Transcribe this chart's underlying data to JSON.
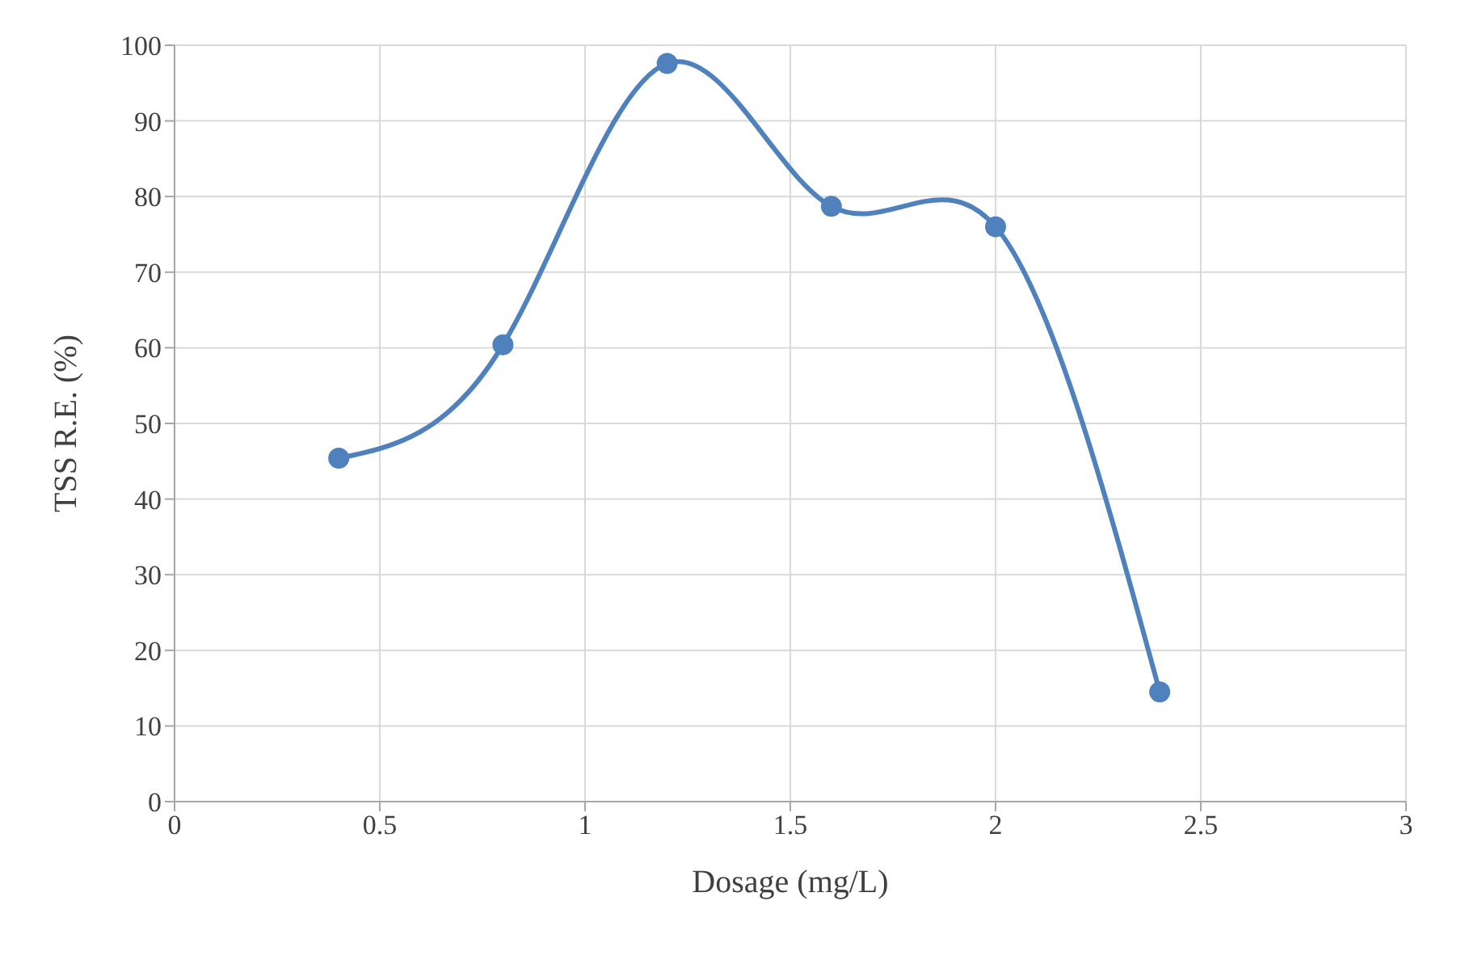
{
  "chart_data": {
    "type": "line",
    "xlabel": "Dosage (mg/L)",
    "ylabel": "TSS R.E. (%)",
    "x": [
      0.4,
      0.8,
      1.2,
      1.6,
      2.0,
      2.4
    ],
    "series": [
      {
        "color": "#4f81bd",
        "values": [
          45.4,
          60.4,
          97.6,
          78.7,
          76.0,
          14.5
        ]
      }
    ],
    "xlim": [
      0,
      3
    ],
    "xticks": [
      0,
      0.5,
      1,
      1.5,
      2,
      2.5,
      3
    ],
    "ylim": [
      0,
      100
    ],
    "yticks": [
      0,
      10,
      20,
      30,
      40,
      50,
      60,
      70,
      80,
      90,
      100
    ],
    "grid": true,
    "marker": "circle",
    "line_style": "solid",
    "legend": false
  }
}
